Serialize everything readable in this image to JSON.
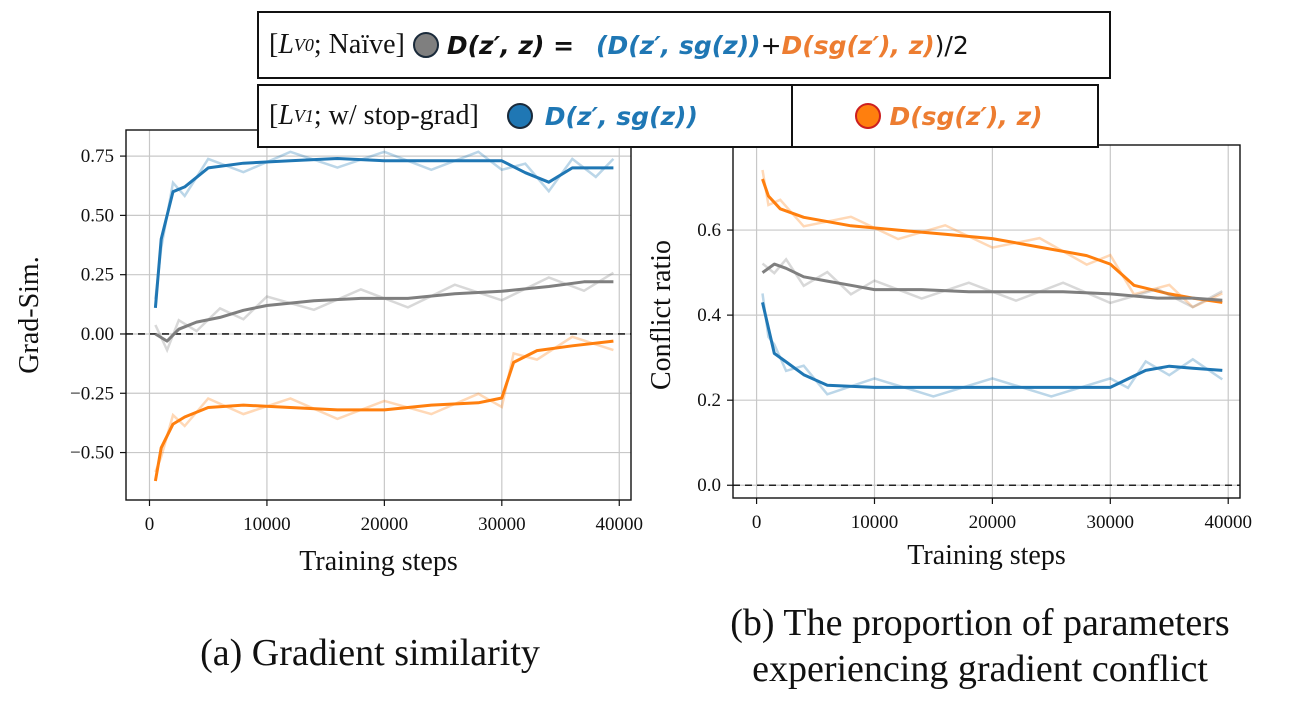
{
  "colors": {
    "naive": "#7f7f7f",
    "stopgrad_z": "#1f77b4",
    "stopgrad_zp": "#ff7f0e",
    "dot_border_orange": "#cc1f1f"
  },
  "legend": {
    "row1_prefix": "[",
    "row1_sub_symbol": "L",
    "row1_sub": "V0",
    "row1_label": "; Naïve]",
    "row1_lhs": "D(z′, z) =",
    "row1_rhs_a": "(D(z′, sg(z))",
    "row1_plus": " + ",
    "row1_rhs_b": "D(sg(z′), z)",
    "row1_tail": ")/2",
    "row2_prefix": "[",
    "row2_sub_symbol": "L",
    "row2_sub": "V1",
    "row2_label": "; w/ stop-grad]",
    "row2_blue": "D(z′, sg(z))",
    "row2_orange": "D(sg(z′), z)"
  },
  "captions": {
    "a": "(a) Gradient similarity",
    "b_line1": "(b) The proportion of parameters",
    "b_line2": "experiencing gradient conflict"
  },
  "chart_data": [
    {
      "type": "line",
      "xlabel": "Training steps",
      "ylabel": "Grad-Sim.",
      "xlim": [
        -2000,
        41000
      ],
      "ylim": [
        -0.7,
        0.86
      ],
      "xticks": [
        0,
        10000,
        20000,
        30000,
        40000
      ],
      "xtick_labels": [
        "0",
        "10000",
        "20000",
        "30000",
        "40000"
      ],
      "yticks": [
        -0.5,
        -0.25,
        0.0,
        0.25,
        0.5,
        0.75
      ],
      "ytick_labels": [
        "−0.50",
        "−0.25",
        "0.00",
        "0.25",
        "0.50",
        "0.75"
      ],
      "grid": true,
      "reference_line_y": 0.0,
      "series": [
        {
          "key": "stopgrad_z",
          "x": [
            500,
            1000,
            2000,
            3000,
            5000,
            8000,
            12000,
            16000,
            20000,
            24000,
            28000,
            30000,
            32000,
            34000,
            36000,
            38000,
            39500
          ],
          "y": [
            0.11,
            0.4,
            0.6,
            0.62,
            0.7,
            0.72,
            0.73,
            0.74,
            0.73,
            0.73,
            0.73,
            0.73,
            0.68,
            0.64,
            0.7,
            0.7,
            0.7
          ]
        },
        {
          "key": "naive",
          "x": [
            500,
            1500,
            2500,
            4000,
            6000,
            8000,
            10000,
            14000,
            18000,
            22000,
            26000,
            30000,
            34000,
            37000,
            39500
          ],
          "y": [
            0.0,
            -0.03,
            0.02,
            0.05,
            0.07,
            0.1,
            0.12,
            0.14,
            0.15,
            0.15,
            0.17,
            0.18,
            0.2,
            0.22,
            0.22
          ]
        },
        {
          "key": "stopgrad_zp",
          "x": [
            500,
            1000,
            2000,
            3000,
            5000,
            8000,
            12000,
            16000,
            20000,
            24000,
            28000,
            30000,
            31000,
            33000,
            36000,
            39500
          ],
          "y": [
            -0.62,
            -0.48,
            -0.38,
            -0.35,
            -0.31,
            -0.3,
            -0.31,
            -0.32,
            -0.32,
            -0.3,
            -0.29,
            -0.27,
            -0.12,
            -0.07,
            -0.05,
            -0.03
          ]
        }
      ]
    },
    {
      "type": "line",
      "xlabel": "Training steps",
      "ylabel": "Conflict ratio",
      "xlim": [
        -2000,
        41000
      ],
      "ylim": [
        -0.03,
        0.8
      ],
      "xticks": [
        0,
        10000,
        20000,
        30000,
        40000
      ],
      "xtick_labels": [
        "0",
        "10000",
        "20000",
        "30000",
        "40000"
      ],
      "yticks": [
        0.0,
        0.2,
        0.4,
        0.6
      ],
      "ytick_labels": [
        "0.0",
        "0.2",
        "0.4",
        "0.6"
      ],
      "grid": true,
      "reference_line_y": 0.0,
      "series": [
        {
          "key": "stopgrad_zp",
          "x": [
            500,
            1000,
            2000,
            4000,
            8000,
            12000,
            16000,
            20000,
            24000,
            28000,
            30000,
            32000,
            35000,
            37000,
            39500
          ],
          "y": [
            0.72,
            0.68,
            0.65,
            0.63,
            0.61,
            0.6,
            0.59,
            0.58,
            0.56,
            0.54,
            0.52,
            0.47,
            0.45,
            0.44,
            0.43
          ]
        },
        {
          "key": "naive",
          "x": [
            500,
            1500,
            2500,
            4000,
            6000,
            8000,
            10000,
            14000,
            18000,
            22000,
            26000,
            30000,
            34000,
            37000,
            39500
          ],
          "y": [
            0.5,
            0.52,
            0.51,
            0.49,
            0.48,
            0.47,
            0.46,
            0.46,
            0.455,
            0.455,
            0.455,
            0.45,
            0.44,
            0.44,
            0.435
          ]
        },
        {
          "key": "stopgrad_z",
          "x": [
            500,
            1000,
            1500,
            2500,
            4000,
            6000,
            10000,
            15000,
            20000,
            25000,
            30000,
            31500,
            33000,
            35000,
            37000,
            39500
          ],
          "y": [
            0.43,
            0.37,
            0.31,
            0.29,
            0.26,
            0.235,
            0.23,
            0.23,
            0.23,
            0.23,
            0.23,
            0.25,
            0.27,
            0.28,
            0.275,
            0.27
          ]
        }
      ]
    }
  ]
}
